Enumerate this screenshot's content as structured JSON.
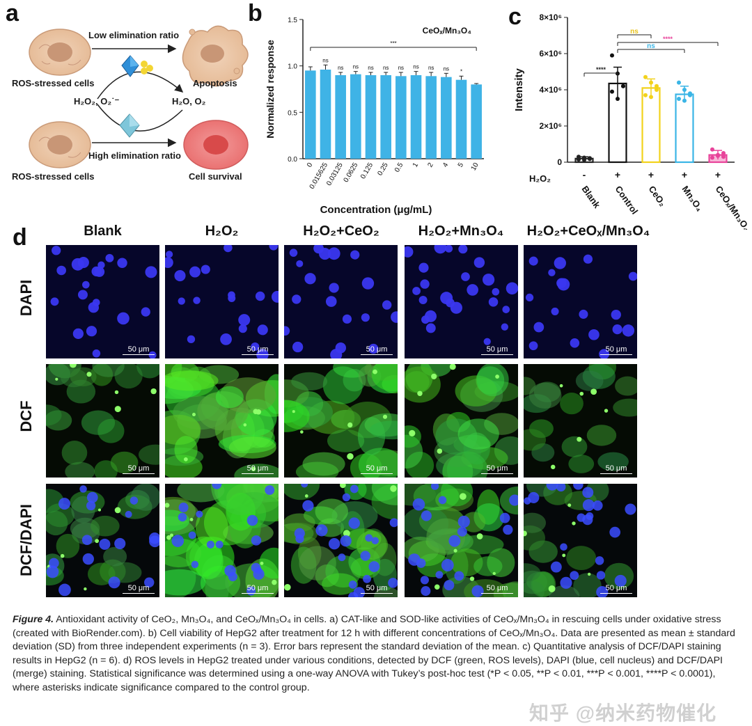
{
  "panel_a": {
    "letter": "a",
    "cell_top_label": "ROS-stressed cells",
    "cell_bottom_label": "ROS-stressed cells",
    "arrow_top_label": "Low elimination ratio",
    "arrow_bottom_label": "High elimination ratio",
    "reactants": "H₂O₂, O₂˙⁻",
    "products": "H₂O, O₂",
    "outcome_top": "Apoptosis",
    "outcome_bottom": "Cell survival"
  },
  "panel_b": {
    "letter": "b",
    "title": "CeOₓ/Mn₃O₄",
    "significance_all": "***",
    "chart_data": {
      "type": "bar",
      "title": "CeOₓ/Mn₃O₄",
      "xlabel": "Concentration (μg/mL)",
      "ylabel": "Normalized response",
      "ylim": [
        0,
        1.5
      ],
      "yticks": [
        "0.0",
        "0.5",
        "1.0",
        "1.5"
      ],
      "categories": [
        "0",
        "0.015625",
        "0.03125",
        "0.0625",
        "0.125",
        "0.25",
        "0.5",
        "1",
        "2",
        "4",
        "5",
        "10"
      ],
      "values": [
        0.95,
        0.96,
        0.9,
        0.91,
        0.9,
        0.9,
        0.89,
        0.9,
        0.89,
        0.88,
        0.85,
        0.8
      ],
      "errors": [
        0.04,
        0.05,
        0.03,
        0.03,
        0.03,
        0.03,
        0.04,
        0.04,
        0.04,
        0.04,
        0.04,
        0.01
      ],
      "significance": [
        "",
        "ns",
        "ns",
        "ns",
        "ns",
        "ns",
        "ns",
        "ns",
        "ns",
        "ns",
        "*",
        ""
      ],
      "bar_color": "#3fb3e6"
    }
  },
  "panel_c": {
    "letter": "c",
    "h2o2_label": "H₂O₂",
    "chart_data": {
      "type": "bar",
      "ylabel": "Intensity",
      "ylim": [
        0,
        8000000
      ],
      "yticks": [
        "0",
        "2×10⁶",
        "4×10⁶",
        "6×10⁶",
        "8×10⁶"
      ],
      "categories": [
        "Blank",
        "Control",
        "CeO₂",
        "Mn₃O₄",
        "CeOₓ/Mn₃O₄"
      ],
      "h2o2": [
        "-",
        "+",
        "+",
        "+",
        "+"
      ],
      "values": [
        200000,
        4350000,
        4100000,
        3750000,
        400000
      ],
      "errors": [
        100000,
        900000,
        500000,
        450000,
        250000
      ],
      "points": [
        [
          150000,
          250000,
          180000,
          300000,
          120000,
          220000
        ],
        [
          5900000,
          4900000,
          4200000,
          3900000,
          3500000,
          4200000
        ],
        [
          4700000,
          4400000,
          4000000,
          3700000,
          3600000,
          4200000
        ],
        [
          4400000,
          4000000,
          3700000,
          3500000,
          3400000,
          3800000
        ],
        [
          700000,
          400000,
          300000,
          250000,
          350000,
          500000
        ]
      ],
      "colors": [
        "#222222",
        "#111111",
        "#f2d21b",
        "#3ab5e6",
        "#e8439a"
      ],
      "comparisons": [
        {
          "text": "****",
          "color": "#222222"
        },
        {
          "text": "ns",
          "color": "#e8c21b"
        },
        {
          "text": "ns",
          "color": "#3ab5e6"
        },
        {
          "text": "****",
          "color": "#e8439a"
        }
      ]
    }
  },
  "panel_d": {
    "letter": "d",
    "columns": [
      "Blank",
      "H₂O₂",
      "H₂O₂+CeO₂",
      "H₂O₂+Mn₃O₄",
      "H₂O₂+CeOₓ/Mn₃O₄"
    ],
    "rows": [
      "DAPI",
      "DCF",
      "DCF/DAPI"
    ],
    "scale_bar": "50 μm"
  },
  "caption": {
    "figure_label": "Figure 4.",
    "text": " Antioxidant activity of CeO₂, Mn₃O₄, and CeOₓ/Mn₃O₄ in cells. a) CAT-like and SOD-like activities of CeOₓ/Mn₃O₄ in rescuing cells under oxidative stress (created with BioRender.com). b) Cell viability of HepG2 after treatment for 12 h with different concentrations of CeOₓ/Mn₃O₄. Data are presented as mean ± standard deviation (SD) from three independent experiments (n = 3). Error bars represent the standard deviation of the mean. c) Quantitative analysis of DCF/DAPI staining results in HepG2 (n = 6). d) ROS levels in HepG2 treated under various conditions, detected by DCF (green, ROS levels), DAPI (blue, cell nucleus) and DCF/DAPI (merge) staining. Statistical significance was determined using a one-way ANOVA with Tukey’s post-hoc test (*P < 0.05, **P < 0.01, ***P < 0.001, ****P < 0.0001), where asterisks indicate significance compared to the control group."
  },
  "watermark": "知乎 @纳米药物催化"
}
